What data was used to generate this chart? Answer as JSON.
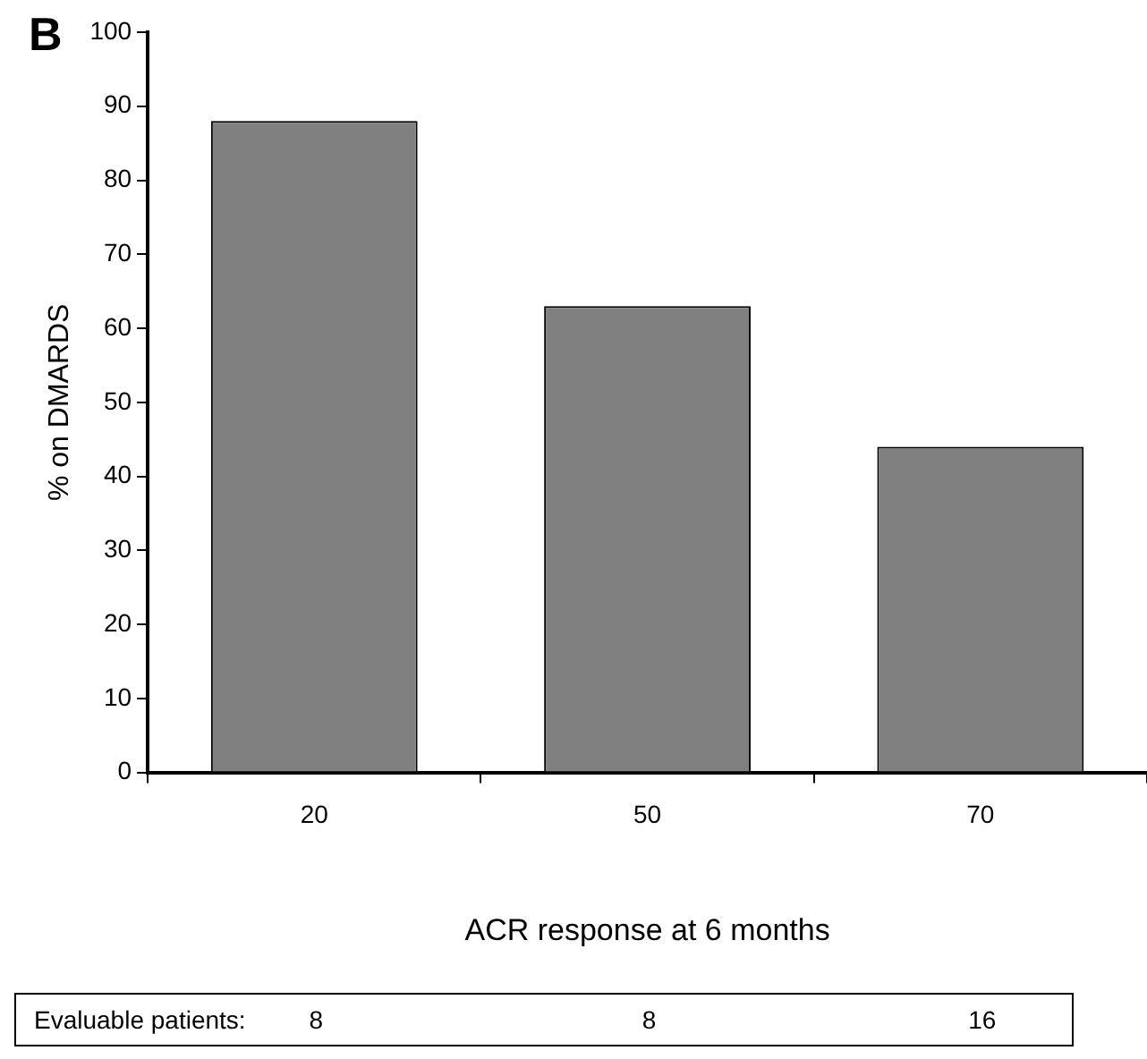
{
  "chart_data": {
    "type": "bar",
    "categories": [
      "20",
      "50",
      "70"
    ],
    "values": [
      88,
      63,
      44
    ],
    "color": "#808080",
    "ylim": [
      0,
      100
    ],
    "yticks": [
      0,
      10,
      20,
      30,
      40,
      50,
      60,
      70,
      80,
      90,
      100
    ],
    "grid": false,
    "xlabel": "ACR response at 6 months",
    "ylabel": "% on DMARDS",
    "annotations": [
      "B",
      "Evaluable patients:",
      "8",
      "8",
      "16"
    ]
  }
}
